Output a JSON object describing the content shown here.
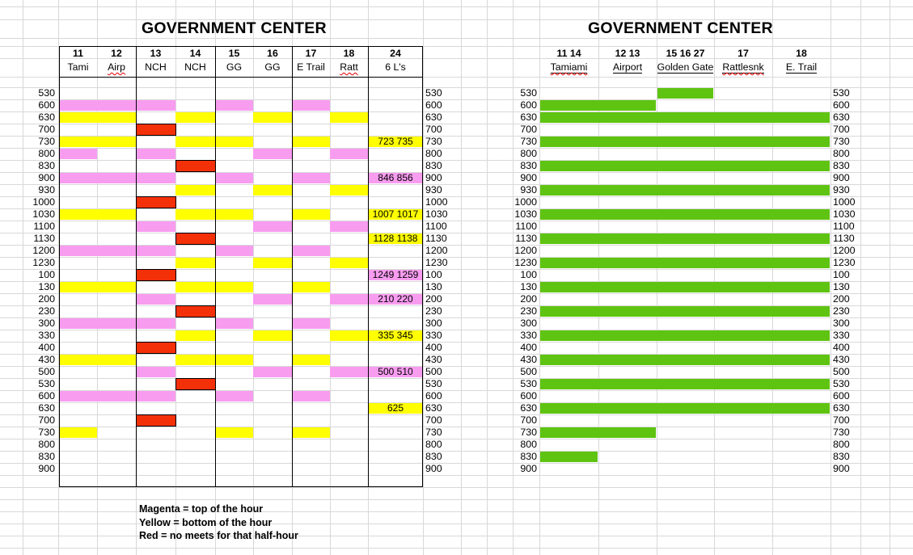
{
  "colors": {
    "magenta": "#F89CF0",
    "yellow": "#FFFF00",
    "red": "#F43009",
    "green": "#5FC411",
    "gridline": "#D8D8D8",
    "border": "#000000",
    "misspell_underline": "#E00000"
  },
  "legend": {
    "lines": [
      "Magenta = top of the hour",
      "Yellow = bottom of the hour",
      "Red = no meets for that half-hour"
    ]
  },
  "left_table": {
    "title": "GOVERNMENT CENTER",
    "columns": [
      {
        "num": "11",
        "name": "Tami",
        "misspelled": false
      },
      {
        "num": "12",
        "name": "Airp",
        "misspelled": true
      },
      {
        "num": "13",
        "name": "NCH",
        "misspelled": false
      },
      {
        "num": "14",
        "name": "NCH",
        "misspelled": false
      },
      {
        "num": "15",
        "name": "GG",
        "misspelled": false
      },
      {
        "num": "16",
        "name": "GG",
        "misspelled": false
      },
      {
        "num": "17",
        "name": "E Trail",
        "misspelled": false
      },
      {
        "num": "18",
        "name": "Ratt",
        "misspelled": true
      },
      {
        "num": "24",
        "name": "6 L's",
        "misspelled": false
      }
    ],
    "rows": [
      {
        "time": "530",
        "cells": [
          "",
          "",
          "",
          "",
          "",
          "",
          "",
          ""
        ],
        "label": "",
        "label_color": ""
      },
      {
        "time": "600",
        "cells": [
          "M",
          "M",
          "M",
          "",
          "M",
          "",
          "M",
          ""
        ],
        "label": "",
        "label_color": ""
      },
      {
        "time": "630",
        "cells": [
          "Y",
          "Y",
          "",
          "Y",
          "",
          "Y",
          "",
          "Y"
        ],
        "label": "",
        "label_color": ""
      },
      {
        "time": "700",
        "cells": [
          "",
          "",
          "R",
          "",
          "",
          "",
          "",
          ""
        ],
        "label": "",
        "label_color": ""
      },
      {
        "time": "730",
        "cells": [
          "Y",
          "Y",
          "",
          "Y",
          "Y",
          "",
          "Y",
          ""
        ],
        "label": "723 735",
        "label_color": "Y"
      },
      {
        "time": "800",
        "cells": [
          "M",
          "",
          "M",
          "",
          "",
          "M",
          "",
          "M"
        ],
        "label": "",
        "label_color": ""
      },
      {
        "time": "830",
        "cells": [
          "",
          "",
          "",
          "R",
          "",
          "",
          "",
          ""
        ],
        "label": "",
        "label_color": ""
      },
      {
        "time": "900",
        "cells": [
          "M",
          "M",
          "M",
          "",
          "M",
          "",
          "M",
          ""
        ],
        "label": "846 856",
        "label_color": "M"
      },
      {
        "time": "930",
        "cells": [
          "",
          "",
          "",
          "Y",
          "",
          "Y",
          "",
          "Y"
        ],
        "label": "",
        "label_color": ""
      },
      {
        "time": "1000",
        "cells": [
          "",
          "",
          "R",
          "",
          "",
          "",
          "",
          ""
        ],
        "label": "",
        "label_color": ""
      },
      {
        "time": "1030",
        "cells": [
          "Y",
          "Y",
          "",
          "Y",
          "Y",
          "",
          "Y",
          ""
        ],
        "label": "1007 1017",
        "label_color": "Y"
      },
      {
        "time": "1100",
        "cells": [
          "",
          "",
          "M",
          "",
          "",
          "M",
          "",
          "M"
        ],
        "label": "",
        "label_color": ""
      },
      {
        "time": "1130",
        "cells": [
          "",
          "",
          "",
          "R",
          "",
          "",
          "",
          ""
        ],
        "label": "1128 1138",
        "label_color": "Y"
      },
      {
        "time": "1200",
        "cells": [
          "M",
          "M",
          "M",
          "",
          "M",
          "",
          "M",
          ""
        ],
        "label": "",
        "label_color": ""
      },
      {
        "time": "1230",
        "cells": [
          "",
          "",
          "",
          "Y",
          "",
          "Y",
          "",
          "Y"
        ],
        "label": "",
        "label_color": ""
      },
      {
        "time": "100",
        "cells": [
          "",
          "",
          "R",
          "",
          "",
          "",
          "",
          ""
        ],
        "label": "1249 1259",
        "label_color": "M"
      },
      {
        "time": "130",
        "cells": [
          "Y",
          "Y",
          "",
          "Y",
          "Y",
          "",
          "Y",
          ""
        ],
        "label": "",
        "label_color": ""
      },
      {
        "time": "200",
        "cells": [
          "",
          "",
          "M",
          "",
          "",
          "M",
          "",
          "M"
        ],
        "label": "210 220",
        "label_color": "M"
      },
      {
        "time": "230",
        "cells": [
          "",
          "",
          "",
          "R",
          "",
          "",
          "",
          ""
        ],
        "label": "",
        "label_color": ""
      },
      {
        "time": "300",
        "cells": [
          "M",
          "M",
          "M",
          "",
          "M",
          "",
          "M",
          ""
        ],
        "label": "",
        "label_color": ""
      },
      {
        "time": "330",
        "cells": [
          "",
          "",
          "",
          "Y",
          "",
          "Y",
          "",
          "Y"
        ],
        "label": "335 345",
        "label_color": "Y"
      },
      {
        "time": "400",
        "cells": [
          "",
          "",
          "R",
          "",
          "",
          "",
          "",
          ""
        ],
        "label": "",
        "label_color": ""
      },
      {
        "time": "430",
        "cells": [
          "Y",
          "Y",
          "",
          "Y",
          "Y",
          "",
          "Y",
          ""
        ],
        "label": "",
        "label_color": ""
      },
      {
        "time": "500",
        "cells": [
          "",
          "",
          "M",
          "",
          "",
          "M",
          "",
          "M"
        ],
        "label": "500 510",
        "label_color": "M"
      },
      {
        "time": "530",
        "cells": [
          "",
          "",
          "",
          "R",
          "",
          "",
          "",
          ""
        ],
        "label": "",
        "label_color": ""
      },
      {
        "time": "600",
        "cells": [
          "M",
          "M",
          "M",
          "",
          "M",
          "",
          "M",
          ""
        ],
        "label": "",
        "label_color": ""
      },
      {
        "time": "630",
        "cells": [
          "",
          "",
          "",
          "",
          "",
          "",
          "",
          ""
        ],
        "label": "625",
        "label_color": "Y"
      },
      {
        "time": "700",
        "cells": [
          "",
          "",
          "R",
          "",
          "",
          "",
          "",
          ""
        ],
        "label": "",
        "label_color": ""
      },
      {
        "time": "730",
        "cells": [
          "Y",
          "",
          "",
          "",
          "Y",
          "",
          "Y",
          ""
        ],
        "label": "",
        "label_color": ""
      },
      {
        "time": "800",
        "cells": [
          "",
          "",
          "",
          "",
          "",
          "",
          "",
          ""
        ],
        "label": "",
        "label_color": ""
      },
      {
        "time": "830",
        "cells": [
          "",
          "",
          "",
          "",
          "",
          "",
          "",
          ""
        ],
        "label": "",
        "label_color": ""
      },
      {
        "time": "900",
        "cells": [
          "",
          "",
          "",
          "",
          "",
          "",
          "",
          ""
        ],
        "label": "",
        "label_color": ""
      }
    ]
  },
  "right_table": {
    "title": "GOVERNMENT CENTER",
    "columns": [
      {
        "nums": "11 14",
        "name": "Tamiami",
        "misspelled": true
      },
      {
        "nums": "12 13",
        "name": "Airport",
        "misspelled": false
      },
      {
        "nums": "15 16 27",
        "name": "Golden Gate",
        "misspelled": false
      },
      {
        "nums": "17",
        "name": "Rattlesnk",
        "misspelled": true
      },
      {
        "nums": "18",
        "name": "E. Trail",
        "misspelled": false
      }
    ],
    "rows": [
      {
        "time": "530",
        "bar": [
          2,
          3
        ]
      },
      {
        "time": "600",
        "bar": [
          0,
          2
        ]
      },
      {
        "time": "630",
        "bar": [
          0,
          5
        ]
      },
      {
        "time": "700",
        "bar": null
      },
      {
        "time": "730",
        "bar": [
          0,
          5
        ]
      },
      {
        "time": "800",
        "bar": null
      },
      {
        "time": "830",
        "bar": [
          0,
          5
        ]
      },
      {
        "time": "900",
        "bar": null
      },
      {
        "time": "930",
        "bar": [
          0,
          5
        ]
      },
      {
        "time": "1000",
        "bar": null
      },
      {
        "time": "1030",
        "bar": [
          0,
          5
        ]
      },
      {
        "time": "1100",
        "bar": null
      },
      {
        "time": "1130",
        "bar": [
          0,
          5
        ]
      },
      {
        "time": "1200",
        "bar": null
      },
      {
        "time": "1230",
        "bar": [
          0,
          5
        ]
      },
      {
        "time": "100",
        "bar": null
      },
      {
        "time": "130",
        "bar": [
          0,
          5
        ]
      },
      {
        "time": "200",
        "bar": null
      },
      {
        "time": "230",
        "bar": [
          0,
          5
        ]
      },
      {
        "time": "300",
        "bar": null
      },
      {
        "time": "330",
        "bar": [
          0,
          5
        ]
      },
      {
        "time": "400",
        "bar": null
      },
      {
        "time": "430",
        "bar": [
          0,
          5
        ]
      },
      {
        "time": "500",
        "bar": null
      },
      {
        "time": "530",
        "bar": [
          0,
          5
        ]
      },
      {
        "time": "600",
        "bar": null
      },
      {
        "time": "630",
        "bar": [
          0,
          5
        ]
      },
      {
        "time": "700",
        "bar": null
      },
      {
        "time": "730",
        "bar": [
          0,
          2
        ]
      },
      {
        "time": "800",
        "bar": null
      },
      {
        "time": "830",
        "bar": [
          0,
          1
        ]
      },
      {
        "time": "900",
        "bar": null
      }
    ]
  }
}
